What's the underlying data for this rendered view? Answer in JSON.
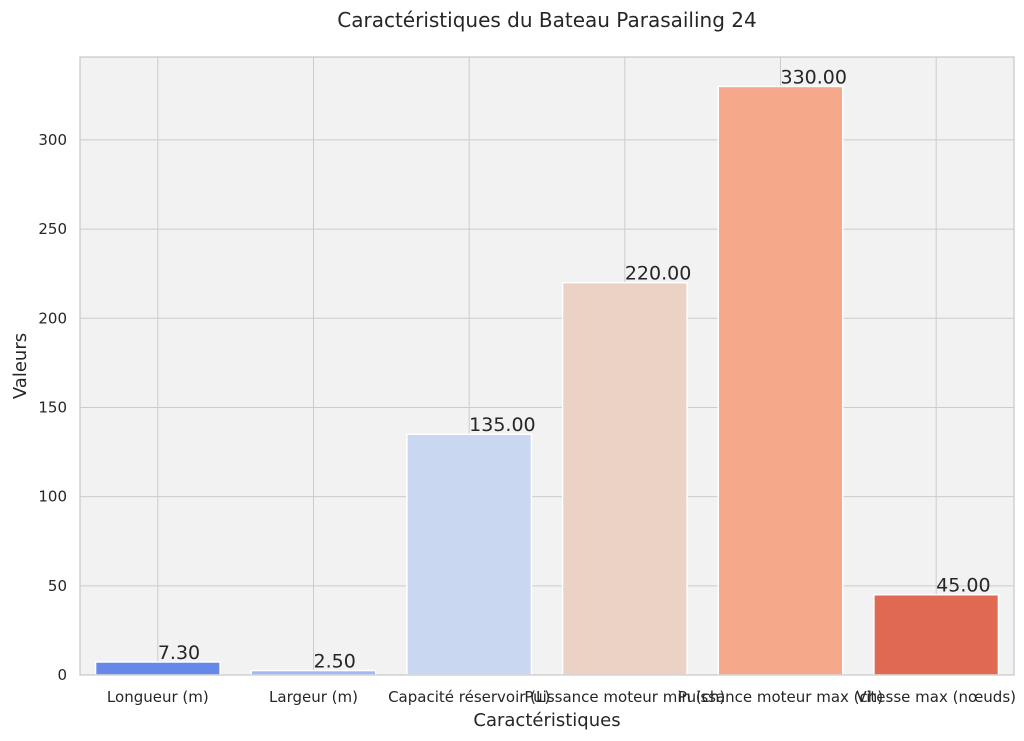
{
  "chart_data": {
    "type": "bar",
    "title": "Caractéristiques du Bateau Parasailing 24",
    "xlabel": "Caractéristiques",
    "ylabel": "Valeurs",
    "categories": [
      "Longueur (m)",
      "Largeur (m)",
      "Capacité réservoir (L)",
      "Puissance moteur min (ch)",
      "Puissance moteur max (ch)",
      "Vitesse max (nœuds)"
    ],
    "values": [
      7.3,
      2.5,
      135,
      220,
      330,
      45
    ],
    "value_labels": [
      "7.30",
      "2.50",
      "135.00",
      "220.00",
      "330.00",
      "45.00"
    ],
    "colors": [
      "#6688e8",
      "#9fb9f4",
      "#c9d7f0",
      "#ecd2c4",
      "#f5a98a",
      "#e06a51"
    ],
    "yticks": [
      0,
      50,
      100,
      150,
      200,
      250,
      300
    ],
    "ylim": [
      0,
      346.5
    ],
    "grid": true,
    "background": "#f2f2f2"
  }
}
